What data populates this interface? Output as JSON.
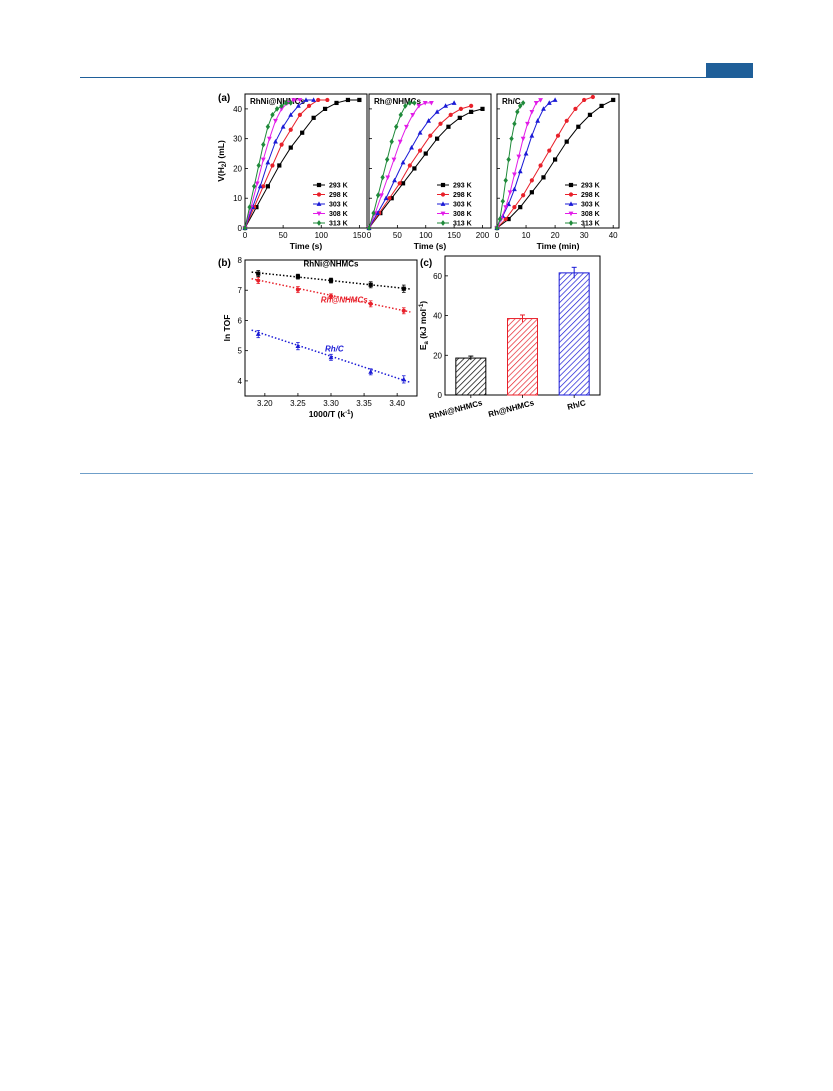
{
  "header": {
    "accent_color": "#1f5f99"
  },
  "chart_data": [
    {
      "panel": "(a)",
      "type": "line",
      "title": "RhNi@NHMCs",
      "xlabel": "Time (s)",
      "ylabel": "V(H2) (mL)",
      "ylabel_main": "V(H",
      "ylabel_sub": "2",
      "ylabel_tail": ") (mL)",
      "xlim": [
        0,
        160
      ],
      "ylim": [
        0,
        45
      ],
      "xticks": [
        0,
        50,
        100,
        150
      ],
      "yticks": [
        0,
        10,
        20,
        30,
        40
      ],
      "legend": "bottom-right",
      "series": [
        {
          "name": "293 K",
          "color": "#000000",
          "marker": "square",
          "x": [
            0,
            15,
            30,
            45,
            60,
            75,
            90,
            105,
            120,
            135,
            150
          ],
          "y": [
            0,
            7,
            14,
            21,
            27,
            32,
            37,
            40,
            42,
            43,
            43
          ]
        },
        {
          "name": "298 K",
          "color": "#e8202a",
          "marker": "circle",
          "x": [
            0,
            12,
            24,
            36,
            48,
            60,
            72,
            84,
            96,
            108
          ],
          "y": [
            0,
            7,
            14,
            21,
            28,
            33,
            38,
            41,
            43,
            43
          ]
        },
        {
          "name": "303 K",
          "color": "#1a1ad6",
          "marker": "triangle-up",
          "x": [
            0,
            10,
            20,
            30,
            40,
            50,
            60,
            70,
            80,
            90
          ],
          "y": [
            0,
            7,
            14,
            22,
            29,
            34,
            38,
            41,
            43,
            43
          ]
        },
        {
          "name": "308 K",
          "color": "#e21ce8",
          "marker": "triangle-down",
          "x": [
            0,
            8,
            16,
            24,
            32,
            40,
            48,
            56,
            64,
            72
          ],
          "y": [
            0,
            7,
            15,
            23,
            30,
            36,
            40,
            42,
            43,
            43
          ]
        },
        {
          "name": "313 K",
          "color": "#1f8a3a",
          "marker": "diamond",
          "x": [
            0,
            6,
            12,
            18,
            24,
            30,
            36,
            42,
            48,
            54,
            60
          ],
          "y": [
            0,
            7,
            14,
            21,
            28,
            34,
            38,
            40,
            41,
            42,
            42
          ]
        }
      ]
    },
    {
      "panel": "",
      "type": "line",
      "title": "Rh@NHMCs",
      "xlabel": "Time (s)",
      "ylabel": "",
      "xlim": [
        0,
        215
      ],
      "ylim": [
        0,
        45
      ],
      "xticks": [
        0,
        50,
        100,
        150,
        200
      ],
      "yticks": [
        0,
        10,
        20,
        30,
        40
      ],
      "legend": "bottom-right",
      "series": [
        {
          "name": "293 K",
          "color": "#000000",
          "marker": "square",
          "x": [
            0,
            20,
            40,
            60,
            80,
            100,
            120,
            140,
            160,
            180,
            200
          ],
          "y": [
            0,
            5,
            10,
            15,
            20,
            25,
            30,
            34,
            37,
            39,
            40
          ]
        },
        {
          "name": "298 K",
          "color": "#e8202a",
          "marker": "circle",
          "x": [
            0,
            18,
            36,
            54,
            72,
            90,
            108,
            126,
            144,
            162,
            180
          ],
          "y": [
            0,
            5,
            10,
            15,
            21,
            26,
            31,
            35,
            38,
            40,
            41
          ]
        },
        {
          "name": "303 K",
          "color": "#1a1ad6",
          "marker": "triangle-up",
          "x": [
            0,
            15,
            30,
            45,
            60,
            75,
            90,
            105,
            120,
            135,
            150
          ],
          "y": [
            0,
            5,
            10,
            16,
            22,
            27,
            32,
            36,
            39,
            41,
            42
          ]
        },
        {
          "name": "308 K",
          "color": "#e21ce8",
          "marker": "triangle-down",
          "x": [
            0,
            11,
            22,
            33,
            44,
            55,
            66,
            77,
            88,
            99,
            110
          ],
          "y": [
            0,
            5,
            11,
            17,
            23,
            29,
            34,
            38,
            41,
            42,
            42
          ]
        },
        {
          "name": "313 K",
          "color": "#1f8a3a",
          "marker": "diamond",
          "x": [
            0,
            8,
            16,
            24,
            32,
            40,
            48,
            56,
            64,
            72,
            80
          ],
          "y": [
            0,
            5,
            11,
            17,
            23,
            29,
            34,
            38,
            41,
            42,
            42
          ]
        }
      ]
    },
    {
      "panel": "",
      "type": "line",
      "title": "Rh/C",
      "xlabel": "Time (min)",
      "ylabel": "",
      "xlim": [
        0,
        42
      ],
      "ylim": [
        0,
        45
      ],
      "xticks": [
        0,
        10,
        20,
        30,
        40
      ],
      "yticks": [
        0,
        10,
        20,
        30,
        40
      ],
      "legend": "bottom-right",
      "series": [
        {
          "name": "293 K",
          "color": "#000000",
          "marker": "square",
          "x": [
            0,
            4,
            8,
            12,
            16,
            20,
            24,
            28,
            32,
            36,
            40
          ],
          "y": [
            0,
            3,
            7,
            12,
            17,
            23,
            29,
            34,
            38,
            41,
            43
          ]
        },
        {
          "name": "298 K",
          "color": "#e8202a",
          "marker": "circle",
          "x": [
            0,
            3,
            6,
            9,
            12,
            15,
            18,
            21,
            24,
            27,
            30,
            33
          ],
          "y": [
            0,
            3,
            7,
            11,
            16,
            21,
            26,
            31,
            36,
            40,
            43,
            44
          ]
        },
        {
          "name": "303 K",
          "color": "#1a1ad6",
          "marker": "triangle-up",
          "x": [
            0,
            2,
            4,
            6,
            8,
            10,
            12,
            14,
            16,
            18,
            20
          ],
          "y": [
            0,
            4,
            8,
            13,
            19,
            25,
            31,
            36,
            40,
            42,
            43
          ]
        },
        {
          "name": "308 K",
          "color": "#e21ce8",
          "marker": "triangle-down",
          "x": [
            0,
            1.5,
            3,
            4.5,
            6,
            7.5,
            9,
            10.5,
            12,
            13.5,
            15
          ],
          "y": [
            0,
            3,
            7,
            12,
            18,
            24,
            30,
            35,
            39,
            42,
            43
          ]
        },
        {
          "name": "313 K",
          "color": "#1f8a3a",
          "marker": "diamond",
          "x": [
            0,
            1,
            2,
            3,
            4,
            5,
            6,
            7,
            8,
            9
          ],
          "y": [
            0,
            3,
            9,
            16,
            23,
            30,
            35,
            39,
            41,
            42
          ]
        }
      ]
    },
    {
      "panel": "(b)",
      "type": "scatter",
      "title": "",
      "xlabel": "1000/T (k⁻¹)",
      "xlabel_main": "1000/T (k",
      "xlabel_sup": "-1",
      "xlabel_tail": ")",
      "ylabel": "ln TOF",
      "xlim": [
        3.17,
        3.43
      ],
      "ylim": [
        3.5,
        8
      ],
      "xticks": [
        3.2,
        3.25,
        3.3,
        3.35,
        3.4
      ],
      "xticklabels": [
        "3.20",
        "3.25",
        "3.30",
        "3.35",
        "3.40"
      ],
      "yticks": [
        4,
        5,
        6,
        7,
        8
      ],
      "legend": "none",
      "series": [
        {
          "name": "RhNi@NHMCs",
          "color": "#000000",
          "marker": "square",
          "x": [
            3.19,
            3.25,
            3.3,
            3.36,
            3.41
          ],
          "y": [
            7.55,
            7.45,
            7.32,
            7.18,
            7.05
          ],
          "err": [
            0.1,
            0.08,
            0.08,
            0.1,
            0.12
          ],
          "fit": [
            [
              3.18,
              7.6
            ],
            [
              3.42,
              7.04
            ]
          ]
        },
        {
          "name": "Rh@NHMCs",
          "color": "#e8202a",
          "marker": "circle",
          "x": [
            3.19,
            3.25,
            3.3,
            3.36,
            3.41
          ],
          "y": [
            7.32,
            7.02,
            6.8,
            6.55,
            6.32
          ],
          "err": [
            0.1,
            0.1,
            0.08,
            0.1,
            0.1
          ],
          "fit": [
            [
              3.18,
              7.38
            ],
            [
              3.42,
              6.28
            ]
          ]
        },
        {
          "name": "Rh/C",
          "color": "#1a1ad6",
          "marker": "triangle-up",
          "x": [
            3.19,
            3.25,
            3.3,
            3.36,
            3.41
          ],
          "y": [
            5.55,
            5.15,
            4.78,
            4.3,
            4.05
          ],
          "err": [
            0.12,
            0.12,
            0.1,
            0.1,
            0.12
          ],
          "fit": [
            [
              3.18,
              5.68
            ],
            [
              3.42,
              3.95
            ]
          ]
        }
      ]
    },
    {
      "panel": "(c)",
      "type": "bar",
      "title": "",
      "xlabel": "",
      "ylabel": "Ea (kJ mol⁻¹)",
      "ylabel_main": "E",
      "ylabel_sub": "a",
      "ylabel_tail": " (kJ mol",
      "ylabel_sup": "-1",
      "ylabel_end": ")",
      "categories": [
        "RhNi@NHMCs",
        "Rh@NHMCs",
        "Rh/C"
      ],
      "values": [
        18.6,
        38.5,
        61.5
      ],
      "errors": [
        1.0,
        1.8,
        2.8
      ],
      "colors": [
        "#000000",
        "#e8202a",
        "#1a1ad6"
      ],
      "ylim": [
        0,
        70
      ],
      "yticks": [
        0,
        20,
        40,
        60
      ],
      "legend": "none"
    }
  ]
}
